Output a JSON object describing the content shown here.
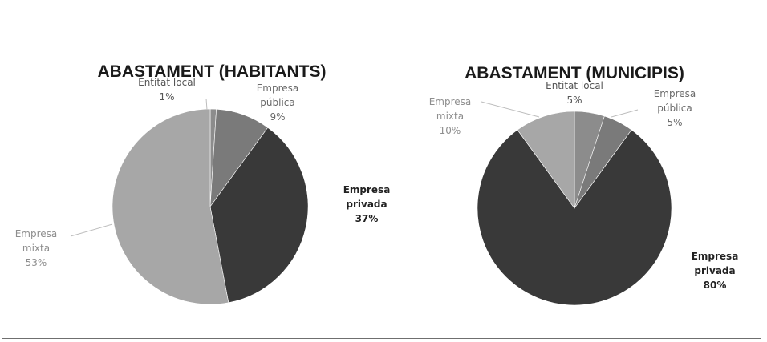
{
  "chart_data": [
    {
      "type": "pie",
      "title": "ABASTAMENT (HABITANTS)",
      "slices": [
        {
          "name": "Entitat local",
          "value": 1,
          "label": "1%",
          "color": "#8c8c8c",
          "text_color": "#555555",
          "bold": false,
          "lines": [
            "Entitat local",
            "1%"
          ]
        },
        {
          "name": "Empresa pública",
          "value": 9,
          "label": "9%",
          "color": "#7a7a7a",
          "text_color": "#6a6a6a",
          "bold": false,
          "lines": [
            "Empresa",
            "pública",
            "9%"
          ]
        },
        {
          "name": "Empresa privada",
          "value": 37,
          "label": "37%",
          "color": "#393939",
          "text_color": "#222222",
          "bold": true,
          "lines": [
            "Empresa",
            "privada",
            "37%"
          ]
        },
        {
          "name": "Empresa mixta",
          "value": 53,
          "label": "53%",
          "color": "#a7a7a7",
          "text_color": "#8e8e8e",
          "bold": false,
          "lines": [
            "Empresa",
            "mixta",
            "53%"
          ]
        }
      ]
    },
    {
      "type": "pie",
      "title": "ABASTAMENT (MUNICIPIS)",
      "slices": [
        {
          "name": "Entitat local",
          "value": 5,
          "label": "5%",
          "color": "#8c8c8c",
          "text_color": "#555555",
          "bold": false,
          "lines": [
            "Entitat local",
            "5%"
          ]
        },
        {
          "name": "Empresa pública",
          "value": 5,
          "label": "5%",
          "color": "#7a7a7a",
          "text_color": "#6a6a6a",
          "bold": false,
          "lines": [
            "Empresa",
            "pública",
            "5%"
          ]
        },
        {
          "name": "Empresa privada",
          "value": 80,
          "label": "80%",
          "color": "#393939",
          "text_color": "#222222",
          "bold": true,
          "lines": [
            "Empresa",
            "privada",
            "80%"
          ]
        },
        {
          "name": "Empresa mixta",
          "value": 10,
          "label": "10%",
          "color": "#a7a7a7",
          "text_color": "#8e8e8e",
          "bold": false,
          "lines": [
            "Empresa",
            "mixta",
            "10%"
          ]
        }
      ]
    }
  ]
}
